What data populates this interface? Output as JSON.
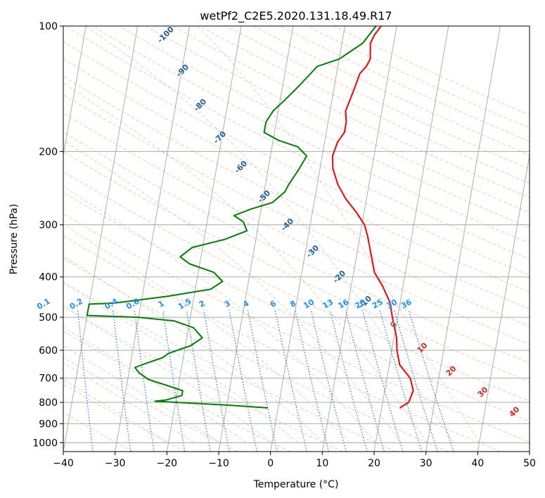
{
  "chart_data": {
    "type": "line",
    "title": "wetPf2_C2E5.2020.131.18.49.R17",
    "xlabel": "Temperature (°C)",
    "ylabel": "Pressure (hPa)",
    "xlim": [
      -40,
      50
    ],
    "ylim": [
      1050,
      100
    ],
    "y_scale": "log",
    "grid": true,
    "x_ticks": [
      "-40",
      "-30",
      "-20",
      "-10",
      "0",
      "10",
      "20",
      "30",
      "40",
      "50"
    ],
    "y_ticks": [
      "100",
      "200",
      "300",
      "400",
      "500",
      "600",
      "700",
      "800",
      "900",
      "1000"
    ],
    "series": [
      {
        "key": "temperature",
        "color": "#ff0000",
        "points": [
          [
            23.5,
            825
          ],
          [
            25,
            800
          ],
          [
            25.5,
            750
          ],
          [
            24.5,
            700
          ],
          [
            22,
            650
          ],
          [
            21,
            600
          ],
          [
            20.5,
            560
          ],
          [
            19,
            500
          ],
          [
            18,
            460
          ],
          [
            16,
            420
          ],
          [
            14,
            390
          ],
          [
            13,
            360
          ],
          [
            11.5,
            320
          ],
          [
            10.5,
            300
          ],
          [
            8.5,
            280
          ],
          [
            6,
            260
          ],
          [
            4,
            240
          ],
          [
            2.5,
            220
          ],
          [
            2,
            205
          ],
          [
            2.5,
            190
          ],
          [
            3.5,
            180
          ],
          [
            3.5,
            170
          ],
          [
            3,
            160
          ],
          [
            3.5,
            150
          ],
          [
            4,
            140
          ],
          [
            4.5,
            130
          ],
          [
            5.5,
            125
          ],
          [
            6,
            120
          ],
          [
            5.5,
            110
          ],
          [
            6,
            105
          ],
          [
            7,
            100
          ]
        ]
      },
      {
        "key": "dewpoint",
        "color": "#008000",
        "points": [
          [
            -2,
            825
          ],
          [
            -10,
            812
          ],
          [
            -24,
            795
          ],
          [
            -22,
            790
          ],
          [
            -19,
            770
          ],
          [
            -19,
            750
          ],
          [
            -22,
            730
          ],
          [
            -26,
            705
          ],
          [
            -28,
            680
          ],
          [
            -29,
            660
          ],
          [
            -27,
            645
          ],
          [
            -24,
            625
          ],
          [
            -23,
            610
          ],
          [
            -19,
            585
          ],
          [
            -17,
            560
          ],
          [
            -19,
            530
          ],
          [
            -23,
            510
          ],
          [
            -30,
            500
          ],
          [
            -40,
            495
          ],
          [
            -40,
            465
          ],
          [
            -35,
            462
          ],
          [
            -25,
            445
          ],
          [
            -17,
            428
          ],
          [
            -15,
            410
          ],
          [
            -17,
            390
          ],
          [
            -22,
            372
          ],
          [
            -24,
            358
          ],
          [
            -22,
            340
          ],
          [
            -16,
            325
          ],
          [
            -12,
            310
          ],
          [
            -13,
            295
          ],
          [
            -15,
            285
          ],
          [
            -12,
            275
          ],
          [
            -8,
            265
          ],
          [
            -6,
            250
          ],
          [
            -5.5,
            240
          ],
          [
            -4,
            220
          ],
          [
            -3,
            205
          ],
          [
            -5,
            195
          ],
          [
            -9,
            188
          ],
          [
            -12,
            180
          ],
          [
            -12,
            170
          ],
          [
            -11,
            160
          ],
          [
            -9,
            150
          ],
          [
            -7,
            140
          ],
          [
            -5,
            130
          ],
          [
            -4,
            125
          ],
          [
            0,
            120
          ],
          [
            4,
            110
          ],
          [
            6,
            100
          ]
        ]
      }
    ],
    "isotherm_labels": [
      "-100",
      "-90",
      "-80",
      "-70",
      "-60",
      "-50",
      "-40",
      "-30",
      "-20",
      "-10",
      "0",
      "10",
      "20",
      "30",
      "40"
    ],
    "mixing_ratio_labels": [
      "0.1",
      "0.2",
      "0.4",
      "0.6",
      "1",
      "1.5",
      "2",
      "3",
      "4",
      "6",
      "8",
      "10",
      "13",
      "16",
      "20",
      "25",
      "30",
      "36"
    ],
    "mixing_ratio_values": [
      0.1,
      0.2,
      0.4,
      0.6,
      1,
      1.5,
      2,
      3,
      4,
      6,
      8,
      10,
      13,
      16,
      20,
      25,
      30,
      36
    ],
    "skew": 45
  }
}
